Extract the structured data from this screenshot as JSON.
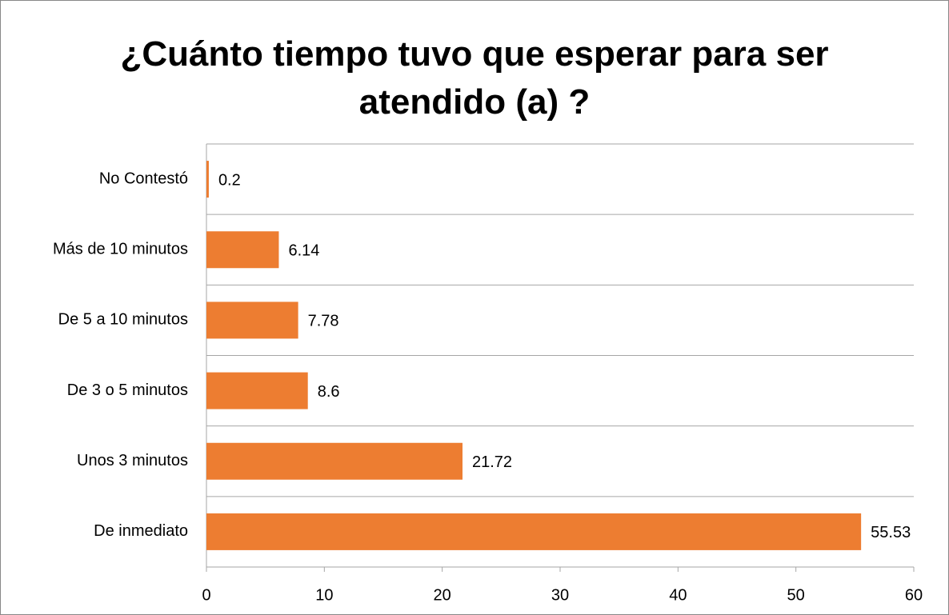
{
  "chart_data": {
    "type": "bar",
    "orientation": "horizontal",
    "title": "¿Cuánto tiempo tuvo que esperar para ser atendido (a) ?",
    "categories": [
      "No Contestó",
      "Más de 10 minutos",
      "De 5 a 10 minutos",
      "De 3 o 5 minutos",
      "Unos 3 minutos",
      "De inmediato"
    ],
    "values": [
      0.2,
      6.14,
      7.78,
      8.6,
      21.72,
      55.53
    ],
    "color": "#ed7d31",
    "xlim": [
      0,
      60
    ],
    "xticks": [
      0,
      10,
      20,
      30,
      40,
      50,
      60
    ]
  }
}
